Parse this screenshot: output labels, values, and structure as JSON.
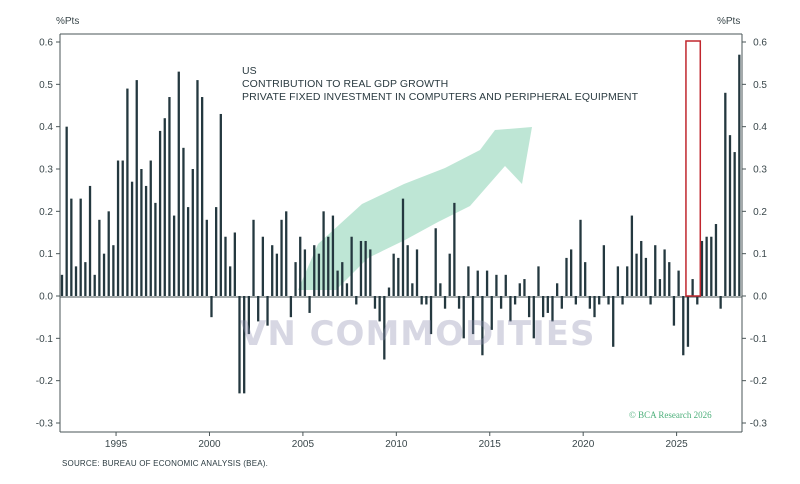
{
  "chart_data": {
    "type": "bar",
    "title_lines": [
      "US",
      "CONTRIBUTION TO REAL GDP GROWTH",
      "PRIVATE FIXED INVESTMENT IN COMPUTERS AND PERIPHERAL EQUIPMENT"
    ],
    "unit_left": "%Pts",
    "unit_right": "%Pts",
    "source": "SOURCE: BUREAU OF ECONOMIC ANALYSIS (BEA).",
    "credit": "© BCA Research 2026",
    "watermark": "VN COMMODITIES",
    "x_start": 1992.0,
    "x_step": 0.25,
    "xlim": [
      1992.0,
      2028.5
    ],
    "ylim": [
      -0.31,
      0.62
    ],
    "y_ticks": [
      0.6,
      0.5,
      0.4,
      0.3,
      0.2,
      0.1,
      0.0,
      -0.1,
      -0.2,
      -0.3
    ],
    "y_tick_labels": [
      "0.6",
      "0.5",
      "0.4",
      "0.3",
      "0.2",
      "0.1",
      "0.0",
      "-0.1",
      "-0.2",
      "-0.3"
    ],
    "x_ticks": [
      1995,
      2000,
      2005,
      2010,
      2015,
      2020,
      2025
    ],
    "x_tick_labels": [
      "1995",
      "2000",
      "2005",
      "2010",
      "2015",
      "2020",
      "2025"
    ],
    "highlight_range": [
      2025.5,
      2026.0
    ],
    "colors": {
      "bar": "#24383f",
      "axis": "#4a5557",
      "highlight": "#c0262d",
      "arrow": "#a8ddc7",
      "watermark": "#8f8fb0",
      "credit": "#4caf7a"
    },
    "values": [
      0.05,
      0.4,
      0.23,
      0.07,
      0.23,
      0.08,
      0.26,
      0.05,
      0.18,
      0.1,
      0.2,
      0.12,
      0.32,
      0.32,
      0.49,
      0.27,
      0.51,
      0.3,
      0.26,
      0.32,
      0.22,
      0.39,
      0.42,
      0.47,
      0.19,
      0.53,
      0.35,
      0.21,
      0.3,
      0.51,
      0.47,
      0.18,
      -0.05,
      0.21,
      0.43,
      0.14,
      0.07,
      0.15,
      -0.23,
      -0.23,
      -0.09,
      0.18,
      -0.06,
      0.14,
      -0.07,
      0.12,
      0.1,
      0.18,
      0.2,
      -0.05,
      0.08,
      0.14,
      0.11,
      -0.04,
      0.12,
      0.1,
      0.2,
      0.14,
      0.19,
      0.06,
      0.08,
      0.03,
      0.14,
      -0.02,
      0.13,
      0.13,
      0.11,
      -0.03,
      -0.06,
      -0.15,
      0.02,
      0.1,
      0.09,
      0.23,
      0.12,
      0.03,
      0.11,
      -0.02,
      -0.02,
      -0.09,
      0.16,
      0.03,
      -0.03,
      0.1,
      0.22,
      -0.03,
      -0.1,
      0.07,
      -0.09,
      0.06,
      -0.14,
      0.06,
      -0.08,
      0.05,
      -0.03,
      0.05,
      -0.06,
      -0.02,
      0.03,
      0.04,
      -0.05,
      -0.1,
      0.07,
      -0.05,
      -0.04,
      -0.06,
      0.03,
      -0.03,
      0.09,
      0.11,
      -0.02,
      0.18,
      0.08,
      -0.03,
      -0.05,
      -0.02,
      0.12,
      -0.02,
      -0.12,
      0.07,
      -0.02,
      0.07,
      0.19,
      0.1,
      0.13,
      0.09,
      -0.02,
      0.12,
      0.04,
      0.11,
      0.08,
      -0.07,
      0.06,
      -0.14,
      -0.12,
      0.04,
      -0.02,
      0.13,
      0.14,
      0.14,
      0.17,
      -0.03,
      0.48,
      0.38,
      0.34,
      0.57
    ]
  }
}
